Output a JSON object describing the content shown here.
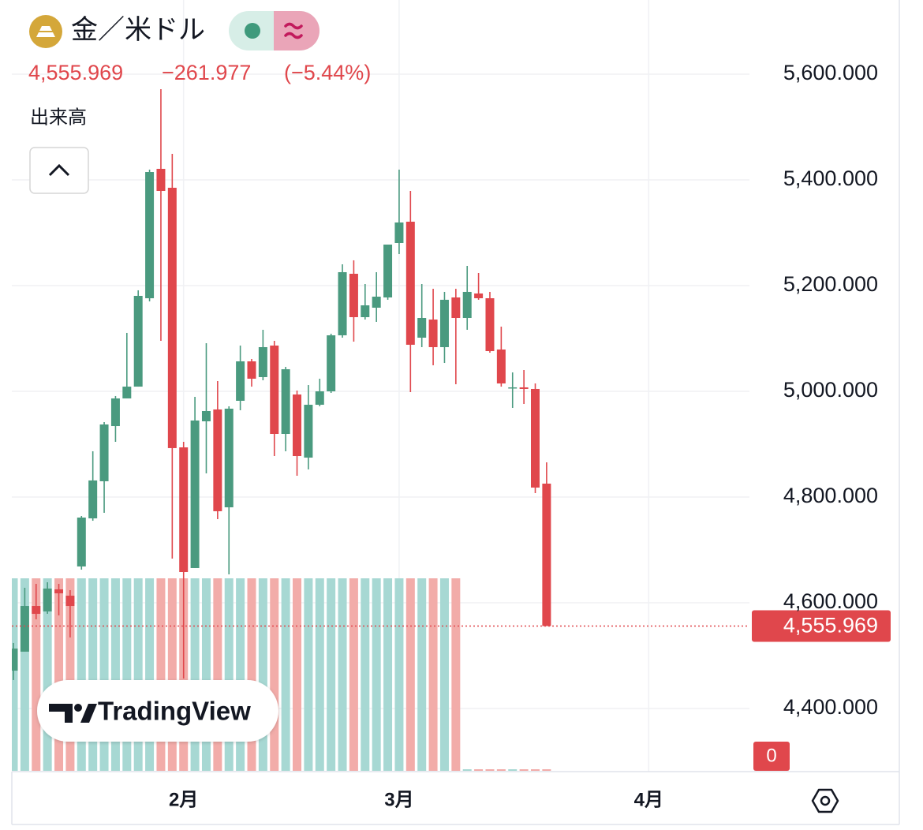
{
  "chart_data": {
    "type": "candlestick",
    "title": "金／米ドル",
    "last_price": {
      "value": 4555.969,
      "label": "4,555.969"
    },
    "change": {
      "value": -261.977,
      "label": "−261.977"
    },
    "change_pct": {
      "value": -5.44,
      "label": "(−5.44%)"
    },
    "volume_title": "出来高",
    "watermark": "TradingView",
    "up_color": "#4a9a7f",
    "down_color": "#e0474c",
    "volume_up_color": "#a7d8d3",
    "volume_down_color": "#f2aca9",
    "x": [
      0,
      1,
      2,
      3,
      4,
      5,
      6,
      7,
      8,
      9,
      10,
      11,
      12,
      13,
      14,
      15,
      16,
      17,
      18,
      19,
      20,
      21,
      22,
      23,
      24,
      25,
      26,
      27,
      28,
      29,
      30,
      31,
      32,
      33,
      34,
      35,
      36,
      37,
      38,
      39,
      40,
      41,
      42,
      43,
      44,
      45,
      46,
      47
    ],
    "open": [
      4471.6,
      4507.5,
      4594.0,
      4583.6,
      4625.4,
      4613.4,
      4668.7,
      4759.7,
      4829.9,
      4934.3,
      4986.6,
      5008.9,
      5176.1,
      5420.9,
      5385.1,
      4894.0,
      4665.7,
      4943.3,
      4965.7,
      4780.6,
      4982.1,
      5056.7,
      5026.9,
      5086.6,
      4919.4,
      4994.0,
      4874.6,
      4974.6,
      5000.0,
      5106.0,
      5222.4,
      5140.3,
      5158.2,
      5177.6,
      5280.6,
      5320.9,
      5101.5,
      5135.8,
      5083.6,
      5177.6,
      5138.8,
      5185.1,
      5176.1,
      5079.1,
      5006.0,
      5007.5,
      5004.5,
      4825.4
    ],
    "high": [
      4524.0,
      4628.4,
      4635.8,
      4638.8,
      4635.8,
      4623.9,
      4764.2,
      4886.6,
      4941.8,
      4991.1,
      5110.5,
      5191.1,
      5419.4,
      5571.6,
      5449.3,
      4904.5,
      4989.6,
      5091.1,
      5019.4,
      4971.7,
      5086.6,
      5061.2,
      5116.4,
      5095.5,
      5046.3,
      5001.5,
      5011.9,
      5023.9,
      5109.0,
      5240.3,
      5247.8,
      5203.0,
      5225.4,
      5277.6,
      5419.4,
      5379.1,
      5203.0,
      5194.0,
      5188.1,
      5194.0,
      5237.3,
      5223.9,
      5188.1,
      5122.4,
      5035.8,
      5040.3,
      5014.9,
      4865.7
    ],
    "low": [
      4453.8,
      4507.5,
      4568.7,
      4579.1,
      4576.1,
      4534.4,
      4662.7,
      4755.2,
      4770.2,
      4904.5,
      4986.6,
      5008.9,
      5170.2,
      5095.5,
      4683.6,
      4456.8,
      4665.7,
      4844.8,
      4758.2,
      4653.8,
      4964.2,
      5008.9,
      5020.9,
      4877.6,
      4886.6,
      4840.3,
      4852.3,
      4971.7,
      4997.0,
      5101.5,
      5094.0,
      5135.8,
      5131.4,
      5173.2,
      5259.7,
      4998.5,
      5083.6,
      5049.3,
      5053.7,
      5013.4,
      5116.4,
      5173.2,
      5073.1,
      5008.9,
      4968.7,
      4976.1,
      4807.5,
      4555.969
    ],
    "close": [
      4513.4,
      4594.0,
      4579.1,
      4626.9,
      4617.9,
      4594.0,
      4761.2,
      4831.4,
      4937.3,
      4986.6,
      5008.9,
      5180.6,
      5414.9,
      5379.1,
      4892.6,
      4658.2,
      4944.8,
      4962.7,
      4773.2,
      4967.2,
      5056.7,
      5023.9,
      5083.6,
      4919.4,
      5041.8,
      4877.6,
      4974.6,
      5000.0,
      5106.0,
      5225.4,
      5140.3,
      5162.7,
      5179.1,
      5277.6,
      5319.4,
      5088.1,
      5138.8,
      5083.6,
      5173.2,
      5138.8,
      5188.1,
      5176.1,
      5076.1,
      5014.9,
      5007.5,
      5004.5,
      4817.9,
      4555.969
    ],
    "volume": {
      "values": [
        1,
        1,
        1,
        1,
        1,
        1,
        1,
        1,
        1,
        1,
        1,
        1,
        1,
        1,
        1,
        1,
        1,
        1,
        1,
        1,
        1,
        1,
        1,
        1,
        1,
        1,
        1,
        1,
        1,
        1,
        1,
        1,
        1,
        1,
        1,
        1,
        1,
        1,
        1,
        1,
        0,
        0,
        0,
        0,
        0,
        0,
        0,
        0
      ],
      "ylim": [
        0,
        1
      ]
    },
    "xlim": [
      -0.14,
      64.88
    ],
    "xticks": [
      {
        "value": 15,
        "label": "2月"
      },
      {
        "value": 34,
        "label": "3月"
      },
      {
        "value": 56,
        "label": "4月"
      }
    ],
    "ylim": [
      4280.6,
      5740.3
    ],
    "yticks": [
      {
        "value": 4400,
        "label": "4,400.000"
      },
      {
        "value": 4600,
        "label": "4,600.000"
      },
      {
        "value": 4800,
        "label": "4,800.000"
      },
      {
        "value": 5000,
        "label": "5,000.000"
      },
      {
        "value": 5200,
        "label": "5,200.000"
      },
      {
        "value": 5400,
        "label": "5,400.000"
      },
      {
        "value": 5600,
        "label": "5,600.000"
      }
    ],
    "grid": true
  }
}
